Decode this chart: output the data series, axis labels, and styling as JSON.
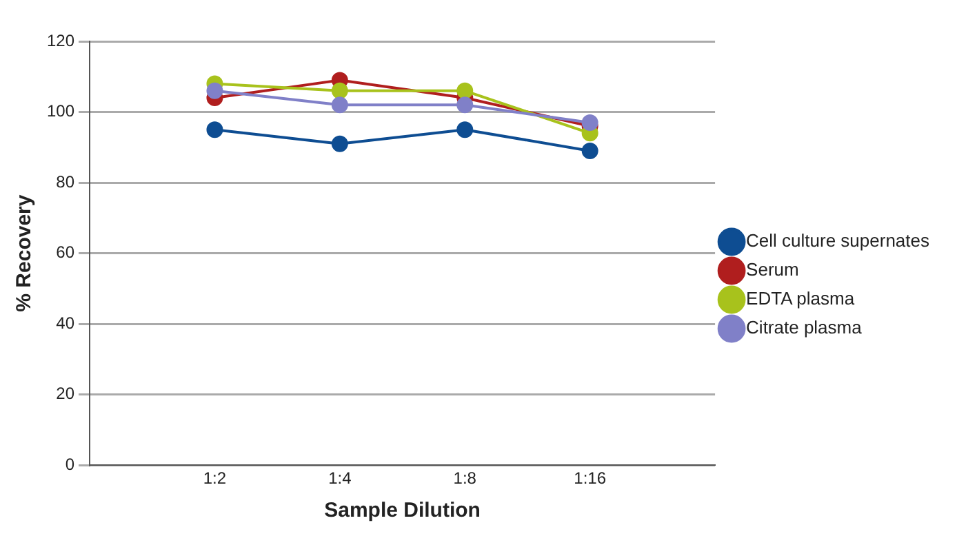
{
  "chart_data": {
    "type": "line",
    "xlabel": "Sample Dilution",
    "ylabel": "% Recovery",
    "categories": [
      "1:2",
      "1:4",
      "1:8",
      "1:16"
    ],
    "ylim": [
      0,
      120
    ],
    "yticks": [
      0,
      20,
      40,
      60,
      80,
      100,
      120
    ],
    "grid": "y",
    "legend": "right",
    "marker": "circle",
    "line_style": "solid",
    "series": [
      {
        "name": "Cell culture supernates",
        "color": "#0e4d92",
        "values": [
          95,
          91,
          95,
          89
        ]
      },
      {
        "name": "Serum",
        "color": "#b01e1e",
        "values": [
          104,
          109,
          104,
          96
        ]
      },
      {
        "name": "EDTA plasma",
        "color": "#a8c21c",
        "values": [
          108,
          106,
          106,
          94
        ]
      },
      {
        "name": "Citrate plasma",
        "color": "#8080c8",
        "values": [
          106,
          102,
          102,
          97
        ]
      }
    ]
  }
}
